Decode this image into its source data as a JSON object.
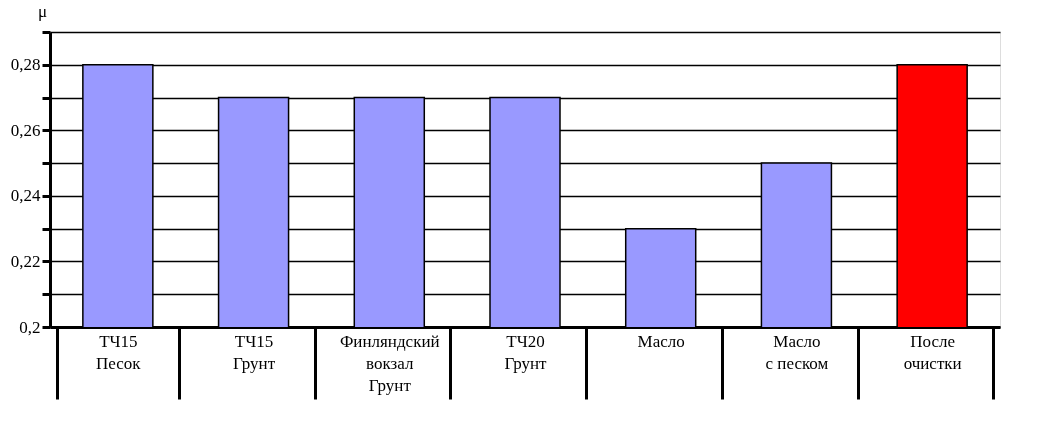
{
  "chart_data": {
    "type": "bar",
    "ylabel": "μ",
    "categories": [
      "ТЧ15\nПесок",
      "ТЧ15\nГрунт",
      "Финляндский\nвокзал\nГрунт",
      "ТЧ20\nГрунт",
      "Масло",
      "Масло\nс песком",
      "После\nочистки"
    ],
    "values": [
      0.28,
      0.27,
      0.27,
      0.27,
      0.23,
      0.25,
      0.28
    ],
    "colors": [
      "#9999ff",
      "#9999ff",
      "#9999ff",
      "#9999ff",
      "#9999ff",
      "#9999ff",
      "#ff0000"
    ],
    "ylim": [
      0.2,
      0.29
    ],
    "yticks": [
      {
        "value": 0.2,
        "label": "0,2"
      },
      {
        "value": 0.21,
        "label": null
      },
      {
        "value": 0.22,
        "label": "0,22"
      },
      {
        "value": 0.23,
        "label": null
      },
      {
        "value": 0.24,
        "label": "0,24"
      },
      {
        "value": 0.25,
        "label": null
      },
      {
        "value": 0.26,
        "label": "0,26"
      },
      {
        "value": 0.27,
        "label": null
      },
      {
        "value": 0.28,
        "label": "0,28"
      },
      {
        "value": 0.29,
        "label": null
      }
    ],
    "grid": "y"
  }
}
